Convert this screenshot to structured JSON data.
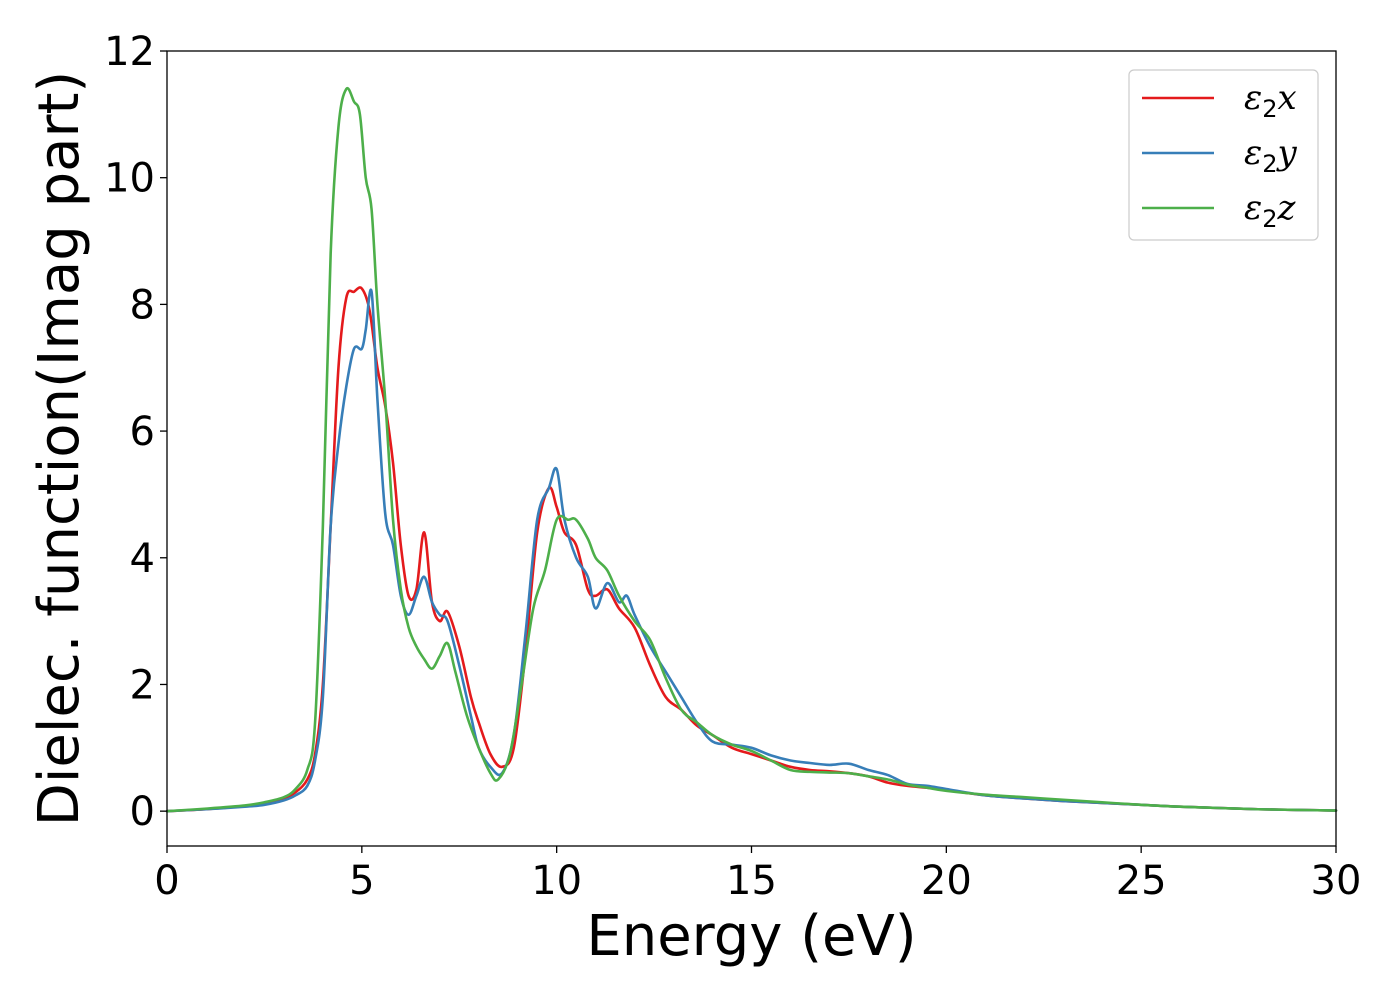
{
  "chart_data": {
    "type": "line",
    "title": "",
    "xlabel": "Energy (eV)",
    "ylabel": "Dielec. function(Imag part)",
    "xlim": [
      0,
      30
    ],
    "ylim": [
      -0.55,
      12
    ],
    "xticks": [
      0,
      5,
      10,
      15,
      20,
      25,
      30
    ],
    "yticks": [
      0,
      2,
      4,
      6,
      8,
      10,
      12
    ],
    "grid": false,
    "legend_position": "top-right",
    "series": [
      {
        "name": "ε₂x",
        "label_base": "ε",
        "label_sub": "2",
        "label_var": "x",
        "color": "#e41a1c",
        "x": [
          0,
          1,
          2,
          2.5,
          3,
          3.3,
          3.6,
          3.8,
          4.0,
          4.2,
          4.4,
          4.6,
          4.8,
          5.0,
          5.2,
          5.4,
          5.6,
          5.8,
          6.0,
          6.2,
          6.4,
          6.6,
          6.8,
          7.0,
          7.2,
          7.5,
          7.8,
          8.0,
          8.3,
          8.6,
          8.9,
          9.2,
          9.5,
          9.8,
          10.0,
          10.2,
          10.5,
          10.8,
          11.0,
          11.3,
          11.6,
          12.0,
          12.4,
          12.8,
          13.2,
          13.6,
          14.0,
          14.5,
          15.0,
          15.5,
          16.0,
          16.5,
          17.0,
          17.5,
          18.0,
          18.5,
          19.0,
          19.5,
          20.0,
          21.0,
          22.0,
          23.0,
          24.0,
          25.0,
          26.0,
          27.0,
          28.0,
          29.0,
          30.0
        ],
        "values": [
          0,
          0.03,
          0.08,
          0.12,
          0.2,
          0.3,
          0.5,
          0.9,
          2.0,
          4.5,
          7.0,
          8.1,
          8.2,
          8.25,
          7.9,
          7.0,
          6.4,
          5.5,
          4.2,
          3.4,
          3.5,
          4.4,
          3.3,
          3.0,
          3.15,
          2.6,
          1.8,
          1.4,
          0.9,
          0.7,
          1.0,
          2.5,
          4.4,
          5.1,
          4.8,
          4.4,
          4.2,
          3.5,
          3.4,
          3.5,
          3.2,
          2.9,
          2.3,
          1.8,
          1.6,
          1.35,
          1.2,
          1.0,
          0.9,
          0.8,
          0.7,
          0.65,
          0.63,
          0.6,
          0.55,
          0.45,
          0.4,
          0.37,
          0.33,
          0.25,
          0.2,
          0.16,
          0.13,
          0.1,
          0.07,
          0.05,
          0.03,
          0.02,
          0.01
        ]
      },
      {
        "name": "ε₂y",
        "label_base": "ε",
        "label_sub": "2",
        "label_var": "y",
        "color": "#377eb8",
        "x": [
          0,
          1,
          2,
          2.5,
          3,
          3.3,
          3.6,
          3.8,
          4.0,
          4.2,
          4.4,
          4.6,
          4.8,
          5.0,
          5.1,
          5.25,
          5.4,
          5.6,
          5.8,
          6.0,
          6.2,
          6.4,
          6.6,
          6.8,
          7.0,
          7.2,
          7.5,
          7.8,
          8.0,
          8.3,
          8.6,
          8.9,
          9.2,
          9.5,
          9.8,
          10.0,
          10.2,
          10.5,
          10.8,
          11.0,
          11.3,
          11.6,
          11.8,
          12.0,
          12.4,
          12.8,
          13.2,
          13.6,
          14.0,
          14.5,
          15.0,
          15.5,
          16.0,
          16.5,
          17.0,
          17.5,
          18.0,
          18.5,
          19.0,
          19.5,
          20.0,
          21.0,
          22.0,
          23.0,
          24.0,
          25.0,
          26.0,
          27.0,
          28.0,
          29.0,
          30.0
        ],
        "values": [
          0,
          0.03,
          0.07,
          0.1,
          0.17,
          0.25,
          0.4,
          0.8,
          1.8,
          4.5,
          5.8,
          6.7,
          7.3,
          7.3,
          7.6,
          8.2,
          6.5,
          4.7,
          4.2,
          3.4,
          3.1,
          3.4,
          3.7,
          3.3,
          3.1,
          3.0,
          2.3,
          1.5,
          1.0,
          0.7,
          0.6,
          1.2,
          2.8,
          4.6,
          5.1,
          5.4,
          4.6,
          4.0,
          3.7,
          3.2,
          3.6,
          3.3,
          3.4,
          3.1,
          2.6,
          2.2,
          1.8,
          1.4,
          1.1,
          1.05,
          1.0,
          0.88,
          0.8,
          0.76,
          0.73,
          0.75,
          0.65,
          0.57,
          0.43,
          0.4,
          0.35,
          0.25,
          0.2,
          0.16,
          0.13,
          0.1,
          0.07,
          0.05,
          0.03,
          0.02,
          0.01
        ]
      },
      {
        "name": "ε₂z",
        "label_base": "ε",
        "label_sub": "2",
        "label_var": "z",
        "color": "#4daf4a",
        "x": [
          0,
          1,
          2,
          2.5,
          3,
          3.3,
          3.6,
          3.8,
          4.0,
          4.2,
          4.4,
          4.6,
          4.8,
          4.95,
          5.1,
          5.25,
          5.4,
          5.6,
          5.8,
          6.0,
          6.2,
          6.4,
          6.6,
          6.8,
          7.0,
          7.2,
          7.4,
          7.7,
          8.0,
          8.3,
          8.5,
          8.8,
          9.1,
          9.4,
          9.7,
          10.0,
          10.3,
          10.5,
          10.8,
          11.0,
          11.3,
          11.6,
          12.0,
          12.4,
          12.8,
          13.2,
          13.6,
          14.0,
          14.5,
          15.0,
          15.5,
          16.0,
          16.5,
          17.0,
          17.5,
          18.0,
          18.5,
          19.0,
          19.5,
          20.0,
          21.0,
          22.0,
          23.0,
          24.0,
          25.0,
          26.0,
          27.0,
          28.0,
          29.0,
          30.0
        ],
        "values": [
          0,
          0.04,
          0.09,
          0.14,
          0.22,
          0.35,
          0.65,
          1.4,
          4.5,
          8.8,
          10.8,
          11.4,
          11.2,
          11.0,
          10.0,
          9.5,
          8.0,
          6.5,
          4.6,
          3.5,
          2.9,
          2.6,
          2.4,
          2.25,
          2.45,
          2.65,
          2.2,
          1.5,
          1.0,
          0.6,
          0.5,
          0.9,
          2.0,
          3.2,
          3.8,
          4.6,
          4.6,
          4.6,
          4.3,
          4.0,
          3.8,
          3.4,
          3.0,
          2.7,
          2.1,
          1.6,
          1.4,
          1.2,
          1.05,
          0.95,
          0.8,
          0.65,
          0.62,
          0.61,
          0.6,
          0.55,
          0.5,
          0.42,
          0.37,
          0.32,
          0.26,
          0.22,
          0.18,
          0.14,
          0.1,
          0.07,
          0.05,
          0.03,
          0.02,
          0.01
        ]
      }
    ]
  }
}
